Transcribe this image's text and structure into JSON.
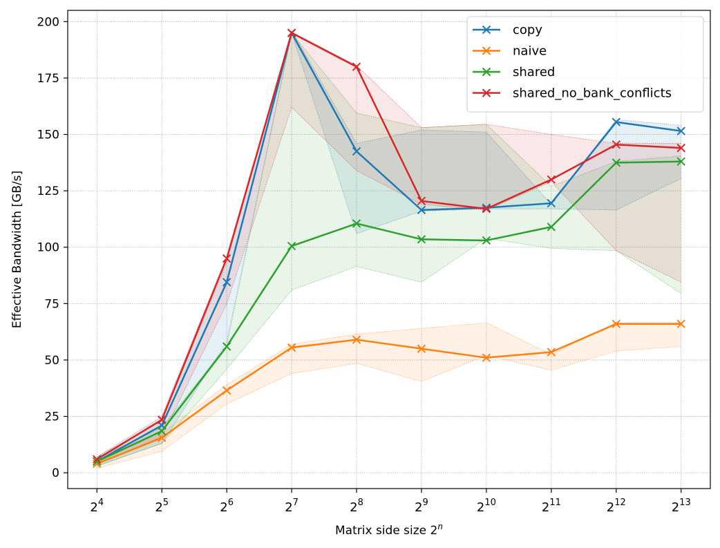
{
  "chart_data": {
    "type": "line",
    "xlabel": "Matrix side size 2",
    "xlabel_sup": "n",
    "ylabel": "Effective Bandwidth [GB/s]",
    "x": [
      4,
      5,
      6,
      7,
      8,
      9,
      10,
      11,
      12,
      13
    ],
    "xtick_labels": [
      {
        "base": "2",
        "exp": "4"
      },
      {
        "base": "2",
        "exp": "5"
      },
      {
        "base": "2",
        "exp": "6"
      },
      {
        "base": "2",
        "exp": "7"
      },
      {
        "base": "2",
        "exp": "8"
      },
      {
        "base": "2",
        "exp": "9"
      },
      {
        "base": "2",
        "exp": "10"
      },
      {
        "base": "2",
        "exp": "11"
      },
      {
        "base": "2",
        "exp": "12"
      },
      {
        "base": "2",
        "exp": "13"
      }
    ],
    "yticks": [
      0,
      25,
      50,
      75,
      100,
      125,
      150,
      175,
      200
    ],
    "xlim": [
      3.55,
      13.45
    ],
    "ylim": [
      -7,
      205
    ],
    "grid": true,
    "legend_position": "top-right",
    "series": [
      {
        "name": "copy",
        "color": "#1f77b4",
        "values": [
          5,
          21,
          84.5,
          195,
          142.5,
          116.5,
          117.5,
          119.5,
          155.5,
          151.5
        ],
        "lower": [
          3,
          13,
          58,
          195,
          106,
          116,
          117,
          117,
          116.5,
          130.5
        ],
        "upper": [
          7,
          23,
          93,
          196,
          146,
          152,
          151,
          119,
          156.5,
          154
        ]
      },
      {
        "name": "naive",
        "color": "#ff7f0e",
        "values": [
          4,
          15.5,
          36.5,
          55.5,
          59,
          55,
          51,
          53.5,
          66,
          66
        ],
        "lower": [
          2,
          9.5,
          30.5,
          44,
          48.5,
          40.5,
          52,
          45.5,
          54,
          56
        ],
        "upper": [
          5.5,
          17.5,
          39,
          57,
          61.5,
          64,
          66.5,
          52.5,
          66.5,
          66.5
        ]
      },
      {
        "name": "shared",
        "color": "#2ca02c",
        "values": [
          5,
          18.5,
          56,
          100.5,
          110.5,
          103.5,
          103,
          109,
          137.5,
          138
        ],
        "lower": [
          3,
          13,
          46,
          81,
          91.5,
          84.5,
          104,
          99.5,
          98.5,
          79.5
        ],
        "upper": [
          6.5,
          20,
          56.5,
          195,
          159.5,
          153,
          154.5,
          127,
          138,
          140.5
        ]
      },
      {
        "name": "shared_no_bank_conflicts",
        "color": "#d62728",
        "values": [
          6,
          23.5,
          95,
          195,
          180,
          120.5,
          117,
          130,
          145.5,
          144
        ],
        "lower": [
          4,
          16,
          75,
          162,
          134,
          119,
          116.5,
          129,
          98.5,
          84.5
        ],
        "upper": [
          7,
          25,
          96,
          195.5,
          180.5,
          153,
          154.5,
          150,
          146,
          146
        ]
      }
    ]
  }
}
